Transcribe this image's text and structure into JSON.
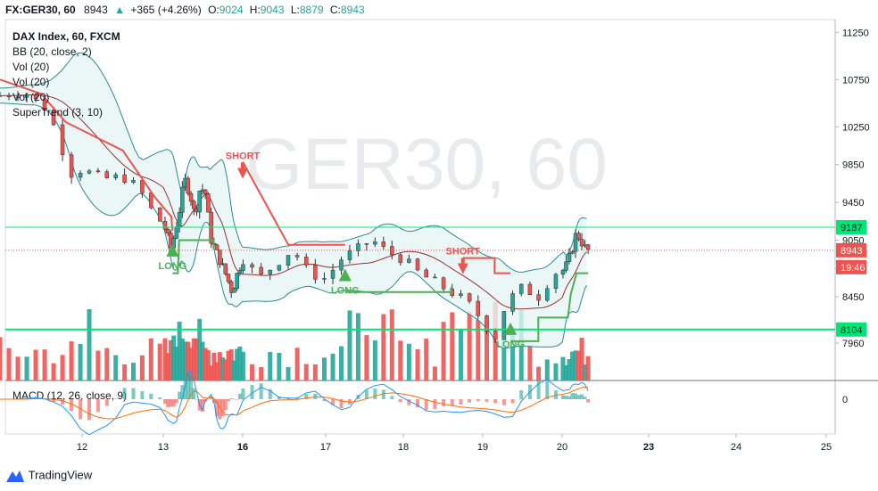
{
  "header": {
    "symbol": "FX:GER30, 60",
    "last": "8943",
    "change": "+365 (+4.26%)",
    "open_label": "O:",
    "open": "9024",
    "high_label": "H:",
    "high": "9043",
    "low_label": "L:",
    "low": "8879",
    "close_label": "C:",
    "close": "8943"
  },
  "legend": {
    "main": "DAX Index, 60, FXCM",
    "items": [
      "BB (20, close, 2)",
      "Vol (20)",
      "Vol (20)",
      "Vol (20)",
      "SuperTrend (3, 10)"
    ]
  },
  "watermark": {
    "symbol": "GER30, 60",
    "sub": "DAX Index"
  },
  "footer": {
    "brand": "TradingView"
  },
  "colors": {
    "up": "#26a69a",
    "down": "#ef5350",
    "bb": "#2b8a96",
    "bb_fill": "#e6f4f4",
    "basis": "#9b2f2f",
    "st_up": "#4caf50",
    "st_down": "#ef5350",
    "level": "#00e676",
    "macd": "#2196f3",
    "signal": "#ff6d00"
  },
  "chart_data": {
    "type": "candlestick",
    "title": "DAX Index, 60, FXCM",
    "y_axis": {
      "ticks": [
        11250,
        10750,
        10250,
        9850,
        9450,
        9050,
        8750,
        8450,
        7960
      ],
      "range": [
        7800,
        11300
      ]
    },
    "x_axis": {
      "ticks": [
        "12",
        "13",
        "16",
        "17",
        "18",
        "19",
        "20",
        "23",
        "24",
        "25"
      ]
    },
    "price_labels": [
      {
        "text": "9187",
        "kind": "level"
      },
      {
        "text": "8943",
        "kind": "last"
      },
      {
        "text": "19:46",
        "kind": "countdown"
      },
      {
        "text": "8104",
        "kind": "level"
      }
    ],
    "horizontal_levels": [
      9187,
      8104
    ],
    "last_price": 8943,
    "annotations": [
      {
        "text": "SHORT",
        "x": 16.0,
        "y": 9890
      },
      {
        "text": "SHORT",
        "x": 18.75,
        "y": 8880
      },
      {
        "text": "LONG",
        "x": 13.35,
        "y": 8820
      },
      {
        "text": "LONG",
        "x": 17.25,
        "y": 8560
      },
      {
        "text": "LONG",
        "x": 19.35,
        "y": 7990
      }
    ],
    "price_path": [
      [
        11.0,
        10580
      ],
      [
        11.3,
        10620
      ],
      [
        11.55,
        10450
      ],
      [
        11.7,
        10180
      ],
      [
        11.85,
        9750
      ],
      [
        12.0,
        9800
      ],
      [
        12.25,
        9700
      ],
      [
        12.5,
        9720
      ],
      [
        12.7,
        9600
      ],
      [
        12.9,
        9300
      ],
      [
        13.1,
        9150
      ],
      [
        13.3,
        8950
      ],
      [
        13.45,
        9150
      ],
      [
        13.6,
        9350
      ],
      [
        13.8,
        9700
      ],
      [
        14.0,
        9550
      ],
      [
        14.2,
        9300
      ],
      [
        14.4,
        9620
      ],
      [
        14.6,
        9540
      ],
      [
        14.8,
        9060
      ],
      [
        15.1,
        8860
      ],
      [
        15.4,
        8660
      ],
      [
        15.6,
        8500
      ],
      [
        15.8,
        8700
      ],
      [
        16.0,
        8850
      ],
      [
        16.2,
        8650
      ],
      [
        16.4,
        8800
      ],
      [
        16.6,
        8950
      ],
      [
        16.8,
        8700
      ],
      [
        17.0,
        8640
      ],
      [
        17.2,
        8850
      ],
      [
        17.4,
        8950
      ],
      [
        17.6,
        9050
      ],
      [
        17.8,
        8920
      ],
      [
        18.0,
        8850
      ],
      [
        18.2,
        8700
      ],
      [
        18.4,
        8600
      ],
      [
        18.6,
        8500
      ],
      [
        18.8,
        8400
      ],
      [
        19.0,
        8200
      ],
      [
        19.15,
        8000
      ],
      [
        19.3,
        8400
      ],
      [
        19.5,
        8550
      ],
      [
        19.7,
        8450
      ],
      [
        19.9,
        8700
      ],
      [
        20.1,
        8750
      ],
      [
        20.3,
        8900
      ],
      [
        20.45,
        9100
      ],
      [
        20.6,
        9080
      ],
      [
        20.75,
        8980
      ],
      [
        20.9,
        8943
      ]
    ],
    "series": [
      {
        "name": "BB (20, close, 2)",
        "type": "bands"
      },
      {
        "name": "SuperTrend (3, 10)",
        "type": "line"
      },
      {
        "name": "Vol (20)",
        "type": "histogram"
      },
      {
        "name": "MACD (12, 26, close, 9)",
        "type": "macd",
        "zero_label": "0"
      }
    ],
    "macd_label": "MACD (12, 26, close, 9)"
  }
}
